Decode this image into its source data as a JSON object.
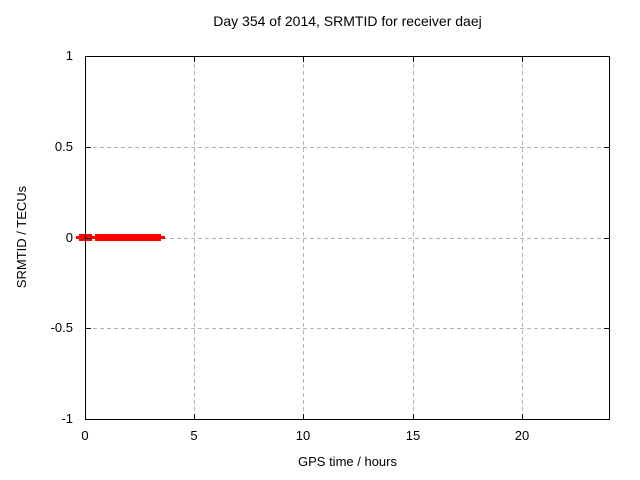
{
  "chart_data": {
    "type": "scatter",
    "title": "Day 354 of 2014, SRMTID for receiver daej",
    "xlabel": "GPS time / hours",
    "ylabel": "SRMTID / TECUs",
    "xlim": [
      0,
      24
    ],
    "ylim": [
      -1,
      1
    ],
    "grid": true,
    "legend": "none",
    "x_tick_values": [
      0,
      5,
      10,
      15,
      20
    ],
    "x_tick_labels": [
      "0",
      "5",
      "10",
      "15",
      "20"
    ],
    "y_tick_values": [
      1,
      0.5,
      0,
      -0.5,
      -1
    ],
    "y_tick_labels": [
      "1",
      "0.5",
      "0",
      "-0.5",
      "-1"
    ],
    "x_grid_values": [
      5,
      10,
      15,
      20
    ],
    "y_grid_values": [
      0.5,
      0,
      -0.5
    ],
    "series": [
      {
        "name": "SRMTID",
        "color": "#ff0000",
        "marker": "filled-square",
        "y_value": 0,
        "line_extent_hours": [
          -0.4,
          3.66
        ],
        "point_cluster_hours": [
          [
            -0.27,
            0.0
          ],
          [
            0.05,
            0.32
          ],
          [
            0.46,
            3.48
          ]
        ],
        "description": "SRMTID approx 0 TECUs for GPS time ~0 to 3.6 hours; no data for rest of day"
      }
    ],
    "colors": {
      "series_red": "#ff0000",
      "grid_gray": "#b2b2b2",
      "border_black": "#000000",
      "background": "#ffffff"
    }
  }
}
